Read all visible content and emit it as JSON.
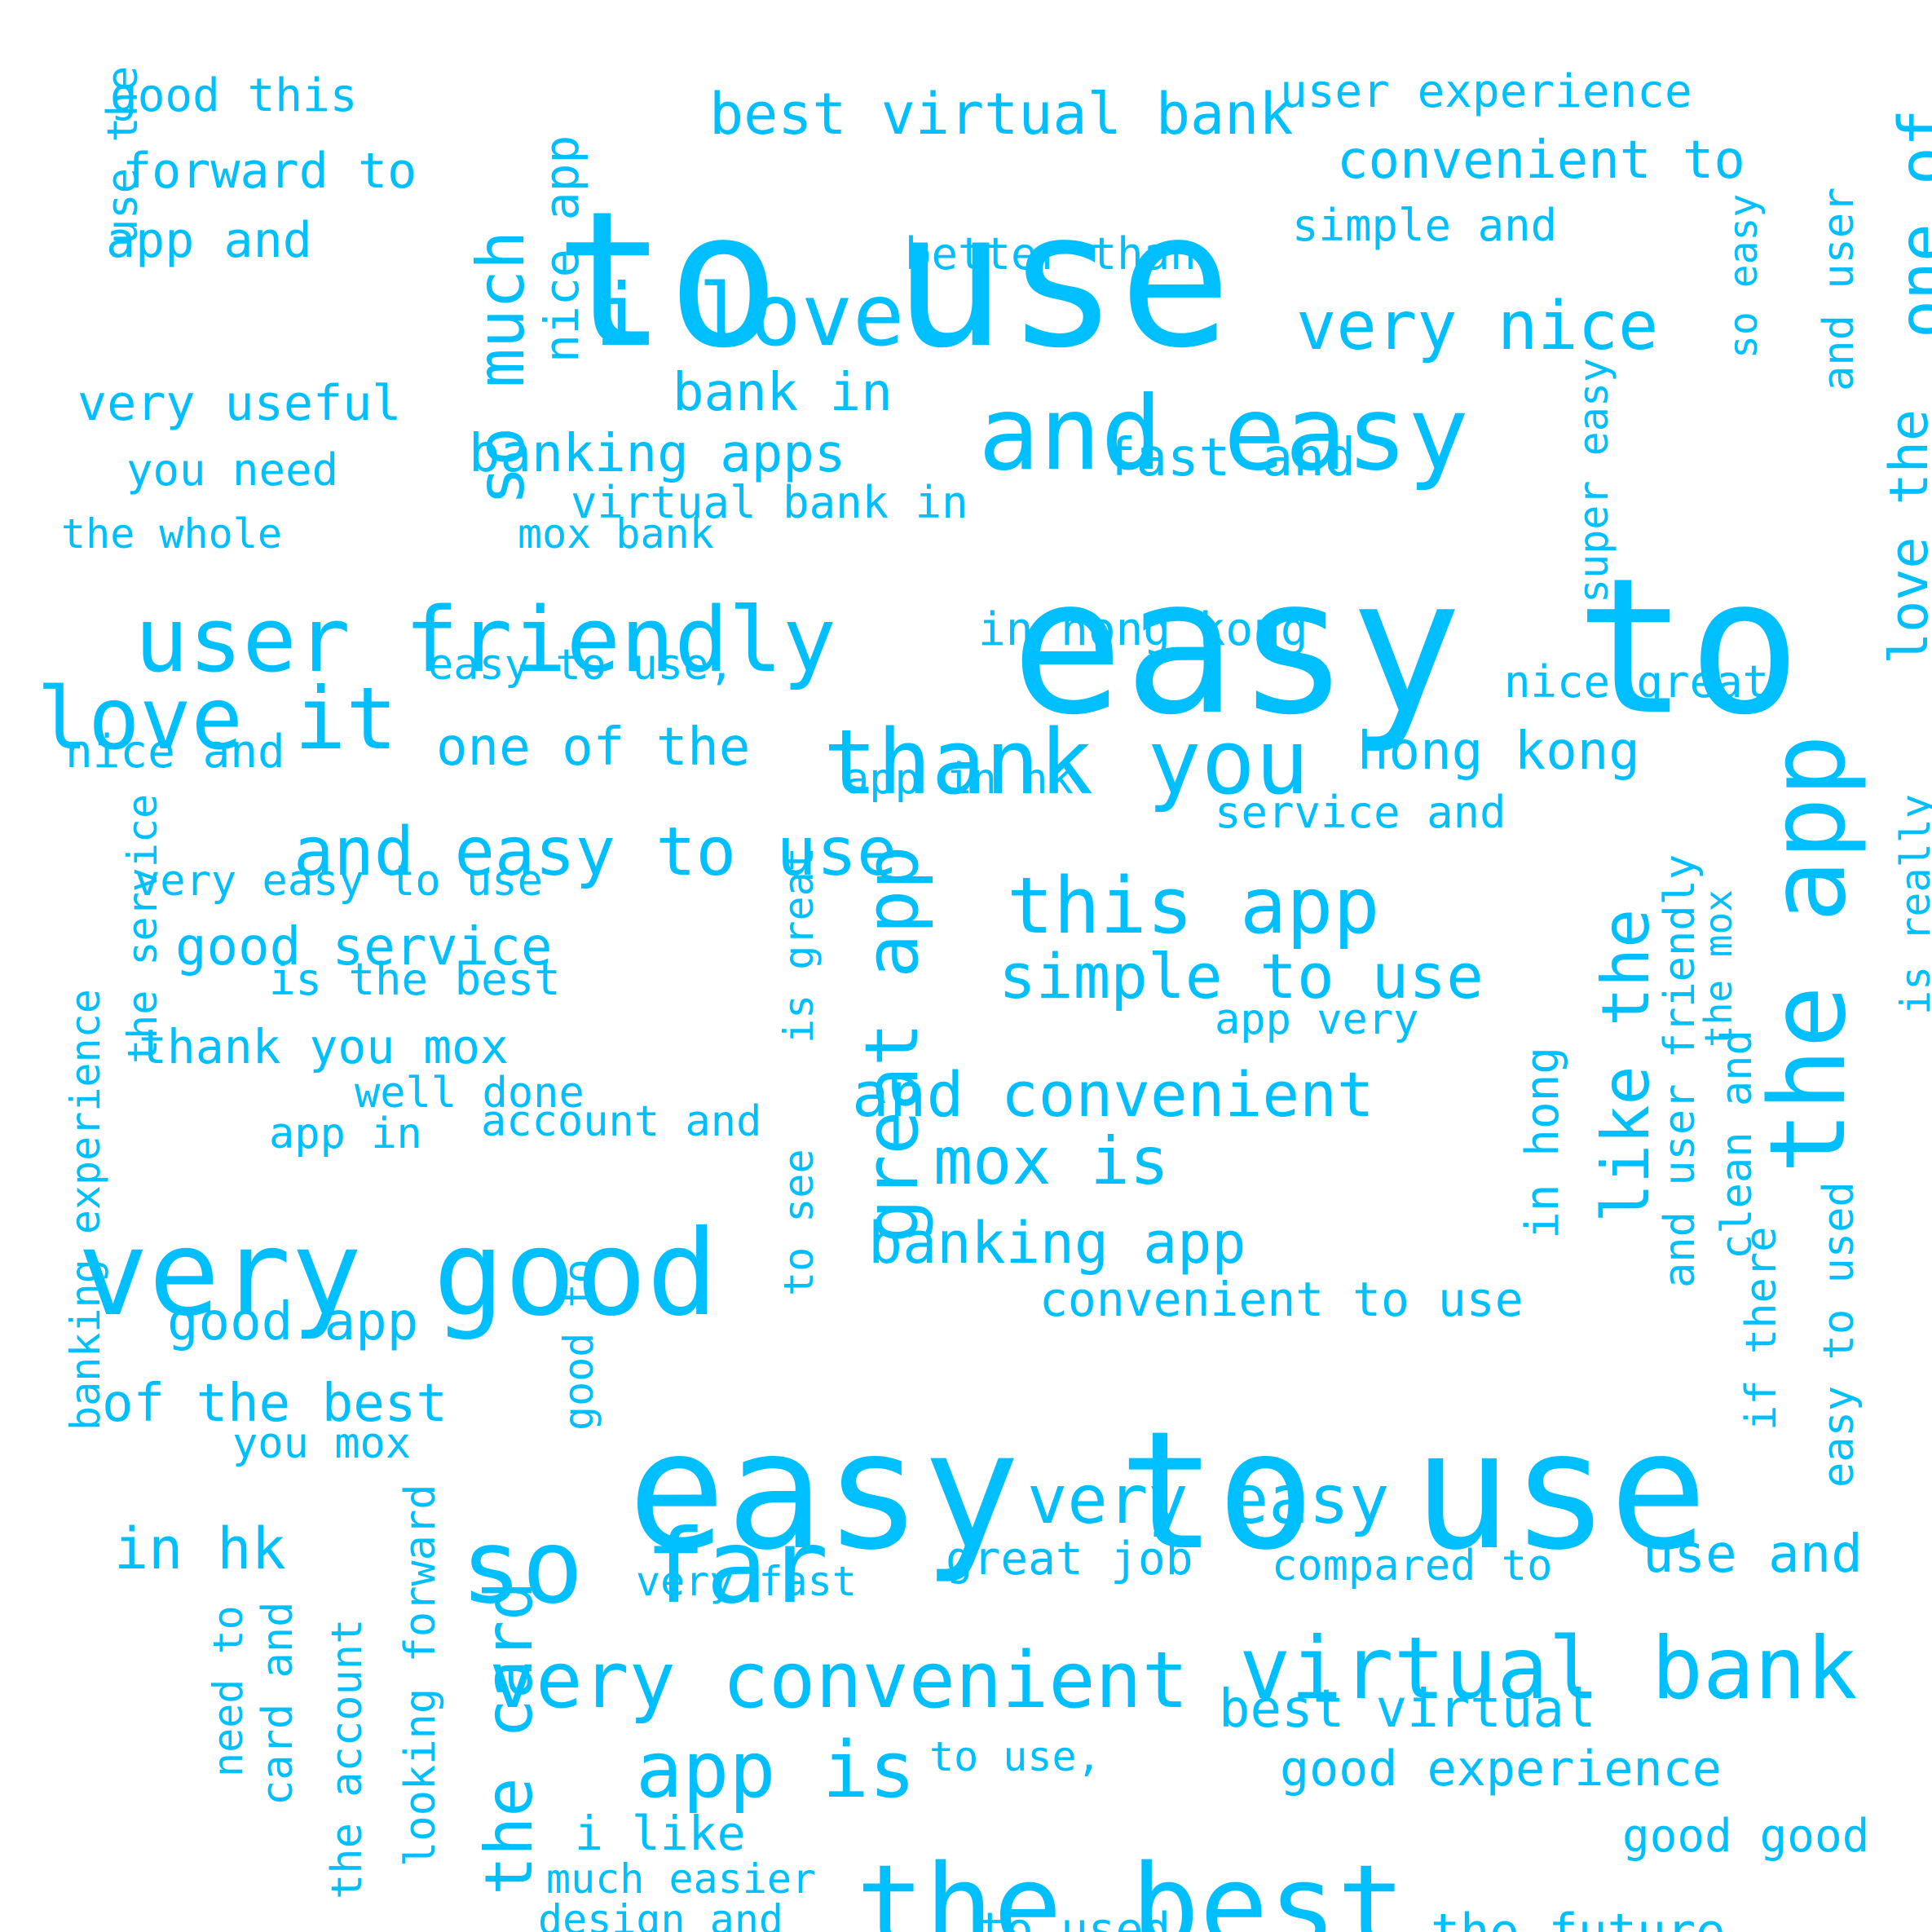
{
  "style": {
    "word_color": "#00bfff",
    "background": "#ffffff"
  },
  "words": [
    "to use",
    "easy to",
    "easy to use",
    "very good",
    "the best",
    "and easy",
    "user friendly",
    "thank you",
    "so far",
    "the app",
    "virtual bank",
    "very convenient",
    "love it",
    "i love",
    "this app",
    "and easy to use",
    "very nice",
    "app is",
    "very easy",
    "great app",
    "so much",
    "like the",
    "the card",
    "one of",
    "simple to use",
    "and convenient",
    "mox is",
    "best virtual bank",
    "banking app",
    "in hk",
    "convenient to",
    "fast and",
    "bank in",
    "banking apps",
    "hong kong",
    "love the",
    "one of the",
    "use and",
    "best virtual",
    "good service",
    "good app",
    "of the best",
    "very useful",
    "forward to",
    "app and",
    "good experience",
    "in hong kong",
    "convenient to use",
    "nice app",
    "great job",
    "the future",
    "user experience",
    "good this",
    "thank you mox",
    "i like",
    "to used",
    "virtual bank in",
    "better than",
    "you need",
    "simple and",
    "nice and",
    "service and",
    "is the best",
    "very easy to use",
    "app in hk",
    "nice great",
    "good good",
    "easy to use,",
    "well done",
    "app very",
    "compared to",
    "you mox",
    "the whole",
    "mox bank",
    "and user",
    "app in",
    "account and",
    "very fast",
    "to use,",
    "much easier",
    "design and",
    "in hong",
    "super easy",
    "use the",
    "so easy",
    "the service",
    "banking experience",
    "is great",
    "to see",
    "good to",
    "card and",
    "the account",
    "looking forward",
    "need to",
    "and user friendly",
    "the mox",
    "if there",
    "easy to used",
    "clean and",
    "is really"
  ]
}
